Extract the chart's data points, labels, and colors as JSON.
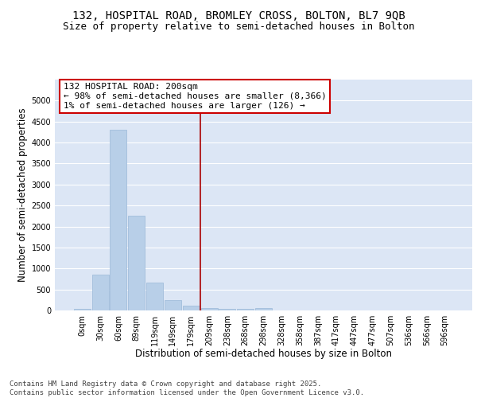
{
  "title_line1": "132, HOSPITAL ROAD, BROMLEY CROSS, BOLTON, BL7 9QB",
  "title_line2": "Size of property relative to semi-detached houses in Bolton",
  "xlabel": "Distribution of semi-detached houses by size in Bolton",
  "ylabel": "Number of semi-detached properties",
  "bar_labels": [
    "0sqm",
    "30sqm",
    "60sqm",
    "89sqm",
    "119sqm",
    "149sqm",
    "179sqm",
    "209sqm",
    "238sqm",
    "268sqm",
    "298sqm",
    "328sqm",
    "358sqm",
    "387sqm",
    "417sqm",
    "447sqm",
    "477sqm",
    "507sqm",
    "536sqm",
    "566sqm",
    "596sqm"
  ],
  "bar_values": [
    30,
    860,
    4300,
    2250,
    670,
    250,
    115,
    65,
    40,
    30,
    50,
    0,
    0,
    0,
    0,
    0,
    0,
    0,
    0,
    0,
    0
  ],
  "bar_color": "#b8cfe8",
  "bar_edge_color": "#9ab8d8",
  "background_color": "#dce6f5",
  "grid_color": "#ffffff",
  "vline_x_index": 7,
  "vline_color": "#aa0000",
  "annotation_text": "132 HOSPITAL ROAD: 200sqm\n← 98% of semi-detached houses are smaller (8,366)\n1% of semi-detached houses are larger (126) →",
  "annotation_box_color": "#ffffff",
  "annotation_box_edge": "#cc0000",
  "ylim": [
    0,
    5500
  ],
  "yticks": [
    0,
    500,
    1000,
    1500,
    2000,
    2500,
    3000,
    3500,
    4000,
    4500,
    5000
  ],
  "footer_line1": "Contains HM Land Registry data © Crown copyright and database right 2025.",
  "footer_line2": "Contains public sector information licensed under the Open Government Licence v3.0.",
  "title_fontsize": 10,
  "subtitle_fontsize": 9,
  "axis_label_fontsize": 8.5,
  "tick_fontsize": 7,
  "annotation_fontsize": 8,
  "footer_fontsize": 6.5
}
